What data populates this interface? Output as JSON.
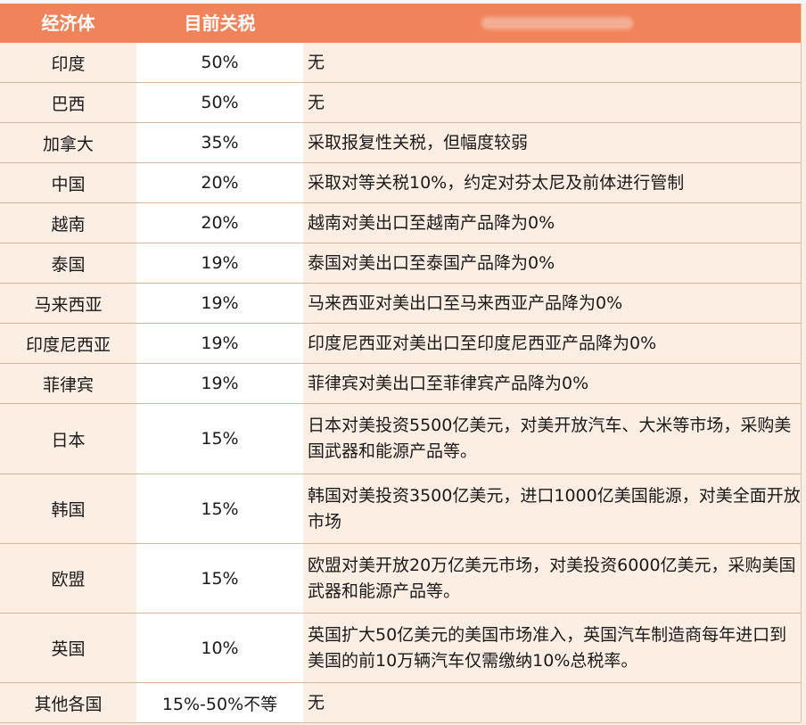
{
  "header": {
    "col1": "经济体",
    "col2": "目前关税",
    "col3": ""
  },
  "rows": [
    {
      "economy": "印度",
      "tariff": "50%",
      "note": "无"
    },
    {
      "economy": "巴西",
      "tariff": "50%",
      "note": "无"
    },
    {
      "economy": "加拿大",
      "tariff": "35%",
      "note": "采取报复性关税，但幅度较弱"
    },
    {
      "economy": "中国",
      "tariff": "20%",
      "note": "采取对等关税10%，约定对芬太尼及前体进行管制"
    },
    {
      "economy": "越南",
      "tariff": "20%",
      "note": "越南对美出口至越南产品降为0%"
    },
    {
      "economy": "泰国",
      "tariff": "19%",
      "note": "泰国对美出口至泰国产品降为0%"
    },
    {
      "economy": "马来西亚",
      "tariff": "19%",
      "note": "马来西亚对美出口至马来西亚产品降为0%"
    },
    {
      "economy": "印度尼西亚",
      "tariff": "19%",
      "note": "印度尼西亚对美出口至印度尼西亚产品降为0%"
    },
    {
      "economy": "菲律宾",
      "tariff": "19%",
      "note": "菲律宾对美出口至菲律宾产品降为0%"
    },
    {
      "economy": "日本",
      "tariff": "15%",
      "note": "日本对美投资5500亿美元，对美开放汽车、大米等市场，采购美国武器和能源产品等。"
    },
    {
      "economy": "韩国",
      "tariff": "15%",
      "note": "韩国对美投资3500亿美元，进口1000亿美国能源，对美全面开放市场"
    },
    {
      "economy": "欧盟",
      "tariff": "15%",
      "note": "欧盟对美开放20万亿美元市场，对美投资6000亿美元，采购美国武器和能源产品等。"
    },
    {
      "economy": "英国",
      "tariff": "10%",
      "note": "英国扩大50亿美元的美国市场准入，英国汽车制造商每年进口到美国的前10万辆汽车仅需缴纳10%总税率。"
    },
    {
      "economy": "其他各国",
      "tariff": "15%-50%不等",
      "note": "无"
    }
  ],
  "colors": {
    "header_bg": "#f0835a",
    "row_bg": "#fdeee4",
    "tariff_bg": "#ffffff",
    "border": "#d9b59d"
  }
}
